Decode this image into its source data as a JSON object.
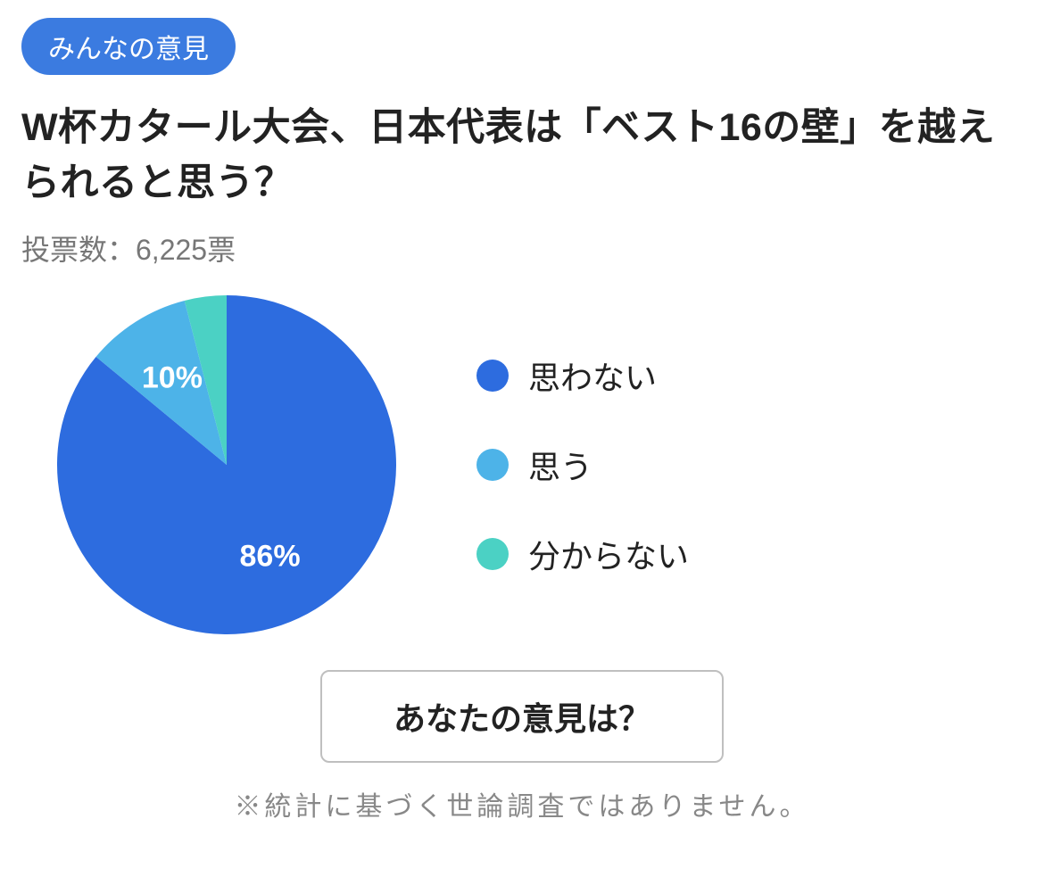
{
  "badge": {
    "label": "みんなの意見",
    "bg": "#3b7be0",
    "fg": "#ffffff"
  },
  "title": "W杯カタール大会、日本代表は「ベスト16の壁」を越えられると思う？",
  "votes_text": "投票数：6,225票",
  "chart": {
    "type": "pie",
    "size": 380,
    "background": "#ffffff",
    "start_angle_deg": -90,
    "slices": [
      {
        "label": "思わない",
        "value": 86,
        "color": "#2d6cdf",
        "show_pct": true,
        "label_color": "#ffffff",
        "label_fontsize": 34
      },
      {
        "label": "思う",
        "value": 10,
        "color": "#4db3e8",
        "show_pct": true,
        "label_color": "#ffffff",
        "label_fontsize": 34
      },
      {
        "label": "分からない",
        "value": 4,
        "color": "#4bd1c4",
        "show_pct": false
      }
    ],
    "legend": {
      "position": "right",
      "dot_size": 36,
      "gap": 48,
      "label_fontsize": 36,
      "label_color": "#222222"
    }
  },
  "cta": {
    "label": "あなたの意見は？",
    "border_color": "#bfbfbf",
    "text_color": "#222222",
    "fontsize": 36
  },
  "disclaimer": "※統計に基づく世論調査ではありません。"
}
